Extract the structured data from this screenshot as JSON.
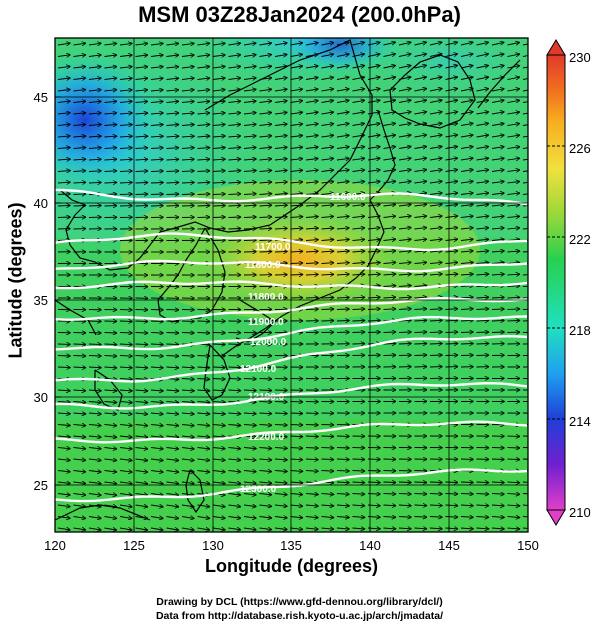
{
  "title": "MSM 03Z28Jan2024 (200.0hPa)",
  "x_axis": {
    "label": "Longitude (degrees)",
    "range": [
      120,
      150
    ],
    "ticks": [
      "120",
      "125",
      "130",
      "135",
      "140",
      "145",
      "150"
    ]
  },
  "y_axis": {
    "label": "Latitude  (degrees)",
    "range": [
      22.4,
      47.6
    ],
    "ticks": [
      "25",
      "30",
      "35",
      "40",
      "45"
    ]
  },
  "colorbar": {
    "range": [
      210,
      230
    ],
    "ticks": [
      "210",
      "214",
      "218",
      "222",
      "226",
      "230"
    ],
    "colors": [
      "#e040c8",
      "#7020d0",
      "#1f3fd8",
      "#1fa0f0",
      "#20e0c0",
      "#28d050",
      "#9ad838",
      "#f0e040",
      "#f8b020",
      "#f06a20",
      "#e03a2a"
    ]
  },
  "contours": {
    "labels": [
      "11600.0",
      "11700.0",
      "11800.0",
      "11800.0",
      "11900.0",
      "12000.0",
      "12100.0",
      "12100.0",
      "12200.0",
      "12300.0"
    ]
  },
  "map": {
    "field": "temperature (shading) / geopotential height (contours) / wind (arrows)",
    "warm_core": "#f5b020",
    "cold_core": "#1a44d8"
  },
  "credits": {
    "line1": "Drawing by DCL (https://www.gfd-dennou.org/library/dcl/)",
    "line2": "Data from http://database.rish.kyoto-u.ac.jp/arch/jmadata/"
  }
}
